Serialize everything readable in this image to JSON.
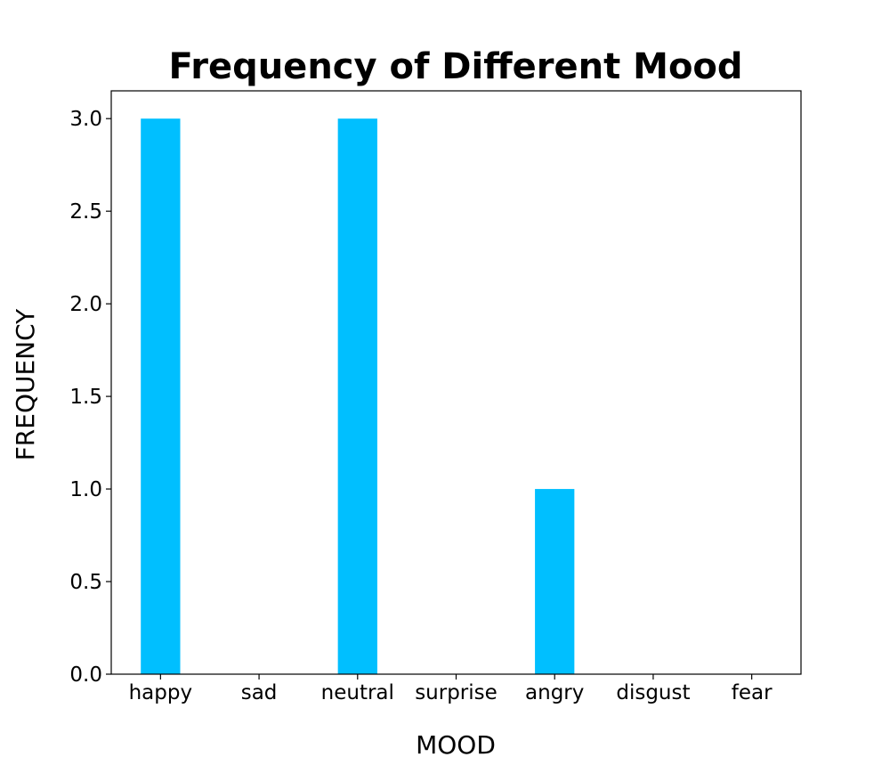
{
  "chart_data": {
    "type": "bar",
    "title": "Frequency of Different Mood",
    "xlabel": "MOOD",
    "ylabel": "FREQUENCY",
    "categories": [
      "happy",
      "sad",
      "neutral",
      "surprise",
      "angry",
      "disgust",
      "fear"
    ],
    "values": [
      3,
      0,
      3,
      0,
      1,
      0,
      0
    ],
    "ylim": [
      0,
      3.15
    ],
    "yticks": [
      "0.0",
      "0.5",
      "1.0",
      "1.5",
      "2.0",
      "2.5",
      "3.0"
    ],
    "grid": false,
    "legend": "none",
    "bar_color": "#00BFFF"
  }
}
